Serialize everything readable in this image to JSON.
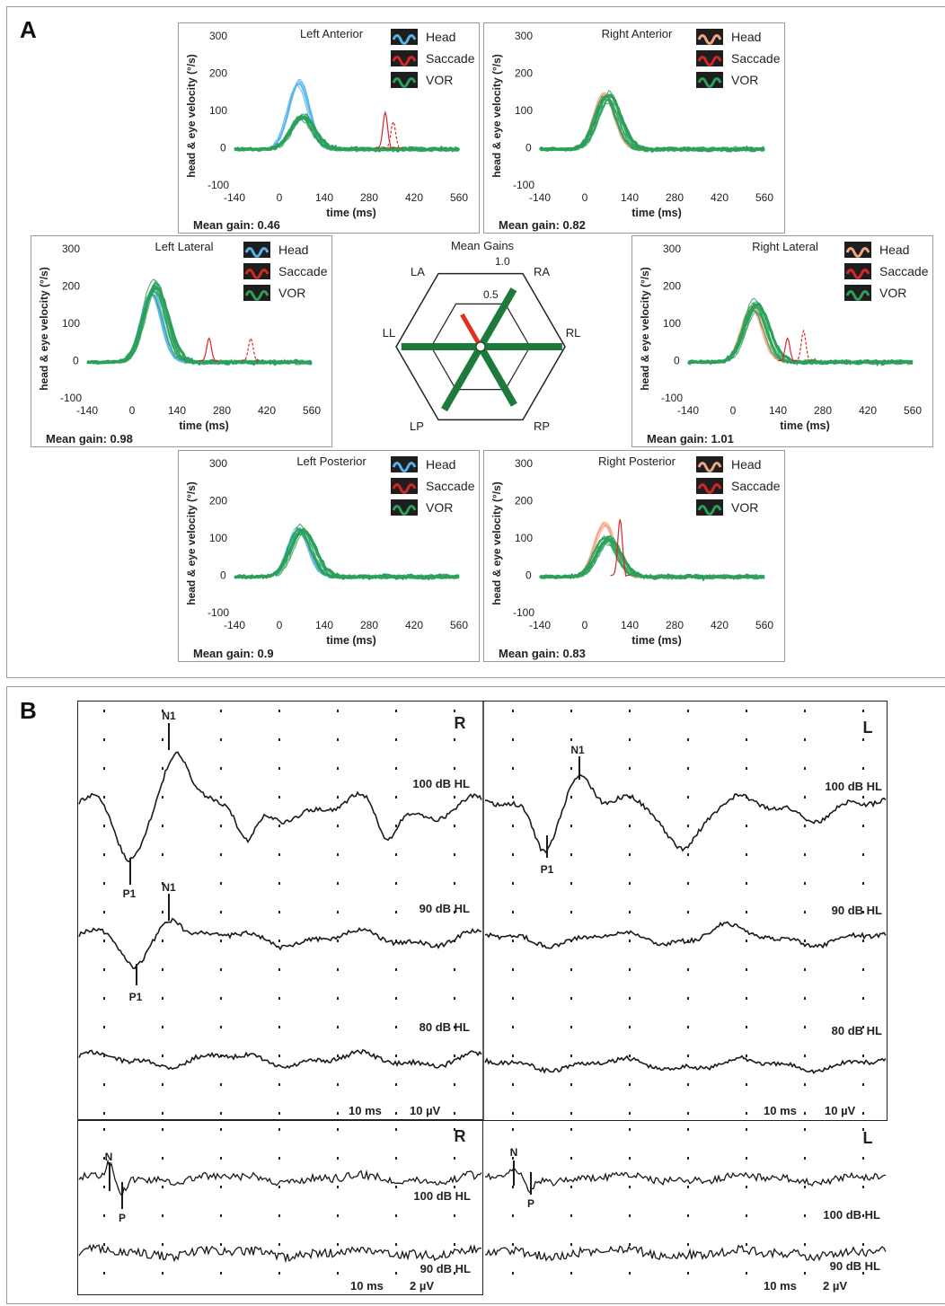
{
  "panels": {
    "A": {
      "label": "A",
      "legend": [
        "Head",
        "Saccade",
        "VOR"
      ],
      "y_axis_label": "head & eye velocity (°/s)",
      "x_axis_label": "time (ms)",
      "y_ticks": [
        "300",
        "200",
        "100",
        "0",
        "-100"
      ],
      "x_ticks": [
        "-140",
        "0",
        "140",
        "280",
        "420",
        "560"
      ],
      "colors": {
        "head_left": "#56b4e9",
        "head_right": "#f4a582",
        "saccade": "#d62728",
        "vor": "#2ca05a"
      },
      "plots": [
        {
          "id": "left-anterior",
          "title": "Left Anterior",
          "gain_text": "Mean gain: 0.46",
          "side": "left",
          "head_peak": 185,
          "vor_peak": 85,
          "saccades": [
            [
              330,
              95
            ],
            [
              355,
              70
            ]
          ]
        },
        {
          "id": "right-anterior",
          "title": "Right Anterior",
          "gain_text": "Mean gain: 0.82",
          "side": "right",
          "head_peak": 150,
          "vor_peak": 145,
          "saccades": []
        },
        {
          "id": "left-lateral",
          "title": "Left Lateral",
          "gain_text": "Mean gain: 0.98",
          "side": "left",
          "head_peak": 195,
          "vor_peak": 200,
          "saccades": [
            [
              240,
              60
            ],
            [
              370,
              60
            ]
          ]
        },
        {
          "id": "right-lateral",
          "title": "Right Lateral",
          "gain_text": "Mean gain: 1.01",
          "side": "right",
          "head_peak": 155,
          "vor_peak": 155,
          "saccades": [
            [
              170,
              60
            ],
            [
              220,
              80
            ]
          ]
        },
        {
          "id": "left-posterior",
          "title": "Left Posterior",
          "gain_text": "Mean gain: 0.9",
          "side": "left",
          "head_peak": 130,
          "vor_peak": 125,
          "saccades": []
        },
        {
          "id": "right-posterior",
          "title": "Right Posterior",
          "gain_text": "Mean gain: 0.83",
          "side": "right",
          "head_peak": 145,
          "vor_peak": 100,
          "saccades": [
            [
              110,
              150
            ]
          ]
        }
      ],
      "radar": {
        "title": "Mean Gains",
        "ring_labels": [
          "1.0",
          "0.5"
        ],
        "axes": [
          "LA",
          "RA",
          "RL",
          "RP",
          "LP",
          "LL"
        ],
        "gains": {
          "LA": 0.46,
          "RA": 0.82,
          "RL": 1.01,
          "RP": 0.83,
          "LP": 0.9,
          "LL": 0.98
        }
      }
    },
    "B": {
      "label": "B",
      "ears": [
        "R",
        "L"
      ],
      "upper": {
        "right_levels": [
          "100 dB HL",
          "90 dB HL",
          "80 dB HL"
        ],
        "left_levels": [
          "100 dB HL",
          "90 dB HL",
          "80 dB HL"
        ],
        "scale_time": "10 ms",
        "scale_amp": "10 µV",
        "right_peaks": [
          {
            "p": "P1",
            "n": "N1"
          },
          {
            "p": "P1",
            "n": "N1"
          }
        ],
        "left_peaks": [
          {
            "p": "P1",
            "n": "N1"
          }
        ]
      },
      "lower": {
        "right_levels": [
          "100 dB HL",
          "90 dB HL"
        ],
        "left_levels": [
          "100 dB HL",
          "90 dB HL"
        ],
        "scale_time": "10 ms",
        "scale_amp": "2 µV",
        "peaks": {
          "n": "N",
          "p": "P"
        }
      }
    }
  }
}
